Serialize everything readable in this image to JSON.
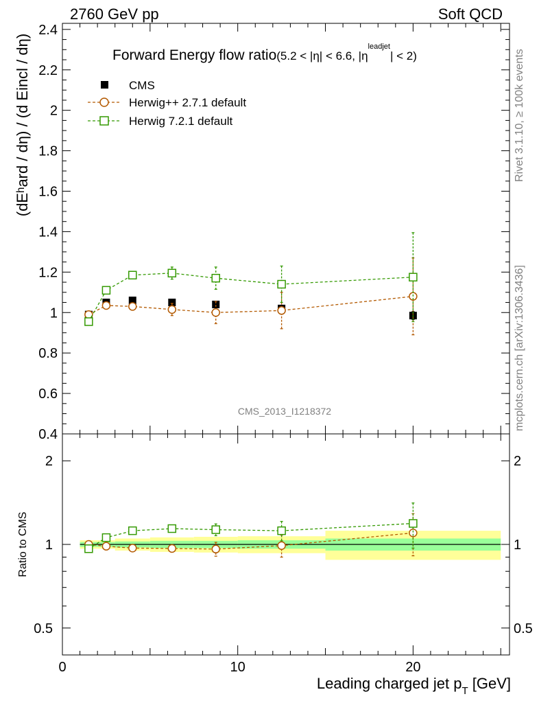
{
  "header": {
    "left": "2760 GeV pp",
    "right": "Soft QCD"
  },
  "side_labels": {
    "rivet": "Rivet 3.1.10, ≥ 100k events",
    "mcplots": "mcplots.cern.ch [arXiv:1306.3436]"
  },
  "chart_data": [
    {
      "type": "scatter",
      "title_main": "Forward Energy flow ratio",
      "title_cut_a": "(5.2 < |η| < 6.6, |η",
      "title_cut_sup": "leadjet",
      "title_cut_b": "| < 2)",
      "ylabel": "(dEʰard / dη) / (d Eincl / dη)",
      "watermark": "CMS_2013_I1218372",
      "xlim": [
        0,
        25.5
      ],
      "ylim": [
        0.4,
        2.43
      ],
      "yticks": [
        "0.4",
        "0.6",
        "0.8",
        "1",
        "1.2",
        "1.4",
        "1.6",
        "1.8",
        "2",
        "2.2",
        "2.4"
      ],
      "legend_position": "top-left",
      "series": [
        {
          "name": "CMS",
          "color": "#000000",
          "marker": "filled-square",
          "x": [
            1.5,
            2.5,
            4.0,
            6.25,
            8.75,
            12.5,
            20.0
          ],
          "y": [
            0.99,
            1.05,
            1.06,
            1.05,
            1.04,
            1.02,
            0.985
          ],
          "err": [
            0.01,
            0.01,
            0.01,
            0.01,
            0.01,
            0.01,
            0.02
          ]
        },
        {
          "name": "Herwig++ 2.7.1 default",
          "color": "#b35900",
          "marker": "open-circle",
          "x": [
            1.5,
            2.5,
            4.0,
            6.25,
            8.75,
            12.5,
            20.0
          ],
          "y": [
            0.99,
            1.035,
            1.03,
            1.015,
            1.0,
            1.01,
            1.08
          ],
          "err": [
            0.01,
            0.01,
            0.01,
            0.03,
            0.055,
            0.09,
            0.19
          ]
        },
        {
          "name": "Herwig 7.2.1 default",
          "color": "#339900",
          "marker": "open-square",
          "x": [
            1.5,
            2.5,
            4.0,
            6.25,
            8.75,
            12.5,
            20.0
          ],
          "y": [
            0.955,
            1.11,
            1.185,
            1.195,
            1.17,
            1.14,
            1.175
          ],
          "err": [
            0.01,
            0.01,
            0.01,
            0.03,
            0.055,
            0.09,
            0.22
          ]
        }
      ]
    },
    {
      "type": "scatter",
      "ylabel": "Ratio to CMS",
      "xlabel": "Leading charged jet p",
      "xlabel_sub": "T",
      "xlabel_unit": " [GeV]",
      "xlim": [
        0,
        25.5
      ],
      "ylim": [
        0.4,
        2.5
      ],
      "scale": "log",
      "yticks": [
        {
          "value": 0.5,
          "label": "0.5"
        },
        {
          "value": 1,
          "label": "1"
        },
        {
          "value": 2,
          "label": "2"
        }
      ],
      "xticks": [
        {
          "value": 0,
          "label": "0"
        },
        {
          "value": 10,
          "label": "10"
        },
        {
          "value": 20,
          "label": "20"
        }
      ],
      "bands": {
        "yellow_color": "#ffff99",
        "green_color": "#99ff99",
        "x_edges": [
          1.0,
          2.0,
          3.0,
          5.0,
          7.5,
          10.0,
          15.0,
          25.0
        ],
        "yellow": [
          0.035,
          0.035,
          0.05,
          0.06,
          0.065,
          0.07,
          0.12
        ],
        "green": [
          0.02,
          0.02,
          0.025,
          0.03,
          0.03,
          0.035,
          0.05
        ]
      },
      "series": [
        {
          "name": "Herwig++ 2.7.1 default",
          "color": "#b35900",
          "marker": "open-circle",
          "x": [
            1.5,
            2.5,
            4.0,
            6.25,
            8.75,
            12.5,
            20.0
          ],
          "y": [
            1.0,
            0.985,
            0.97,
            0.967,
            0.962,
            0.99,
            1.1
          ],
          "err": [
            0.01,
            0.01,
            0.01,
            0.03,
            0.055,
            0.09,
            0.19
          ]
        },
        {
          "name": "Herwig 7.2.1 default",
          "color": "#339900",
          "marker": "open-square",
          "x": [
            1.5,
            2.5,
            4.0,
            6.25,
            8.75,
            12.5,
            20.0
          ],
          "y": [
            0.965,
            1.058,
            1.12,
            1.14,
            1.13,
            1.12,
            1.19
          ],
          "err": [
            0.01,
            0.01,
            0.01,
            0.03,
            0.055,
            0.09,
            0.22
          ]
        }
      ]
    }
  ]
}
